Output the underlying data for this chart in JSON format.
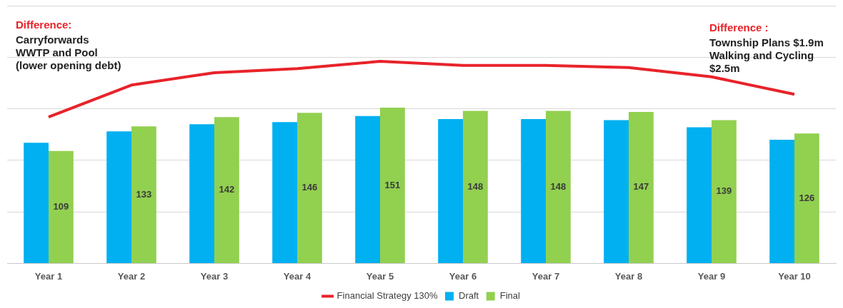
{
  "chart_data": {
    "type": "bar",
    "categories": [
      "Year 1",
      "Year 2",
      "Year 3",
      "Year 4",
      "Year 5",
      "Year 6",
      "Year 7",
      "Year 8",
      "Year 9",
      "Year 10"
    ],
    "series": [
      {
        "name": "Draft",
        "color": "#00b0f0",
        "values": [
          117,
          128,
          135,
          137,
          143,
          140,
          140,
          139,
          132,
          120
        ]
      },
      {
        "name": "Final",
        "color": "#92d050",
        "values": [
          109,
          133,
          142,
          146,
          151,
          148,
          148,
          147,
          139,
          126
        ],
        "value_labels": [
          "109",
          "133",
          "142",
          "146",
          "151",
          "148",
          "148",
          "147",
          "139",
          "126"
        ]
      },
      {
        "name": "Financial Strategy 130%",
        "type": "line",
        "color": "#e8232a",
        "values": [
          142,
          173,
          185,
          189,
          196,
          192,
          192,
          190,
          181,
          164
        ]
      }
    ],
    "ylim": [
      0,
      250
    ],
    "yticks": [
      {
        "value": 0,
        "label": null
      },
      {
        "value": 50,
        "label": null
      },
      {
        "value": 100,
        "label": null
      },
      {
        "value": 150,
        "label": null
      },
      {
        "value": 200,
        "label": null
      },
      {
        "value": 250,
        "label": null
      }
    ],
    "grid": "y",
    "legend": "bottom",
    "marker": "none",
    "line_style": "solid",
    "annotations": [
      "Difference:",
      "Carryforwards WWTP and Pool (lower opening debt)",
      "Difference :",
      "Township Plans $1.9m",
      "Walking and Cycling $2.5m"
    ]
  }
}
